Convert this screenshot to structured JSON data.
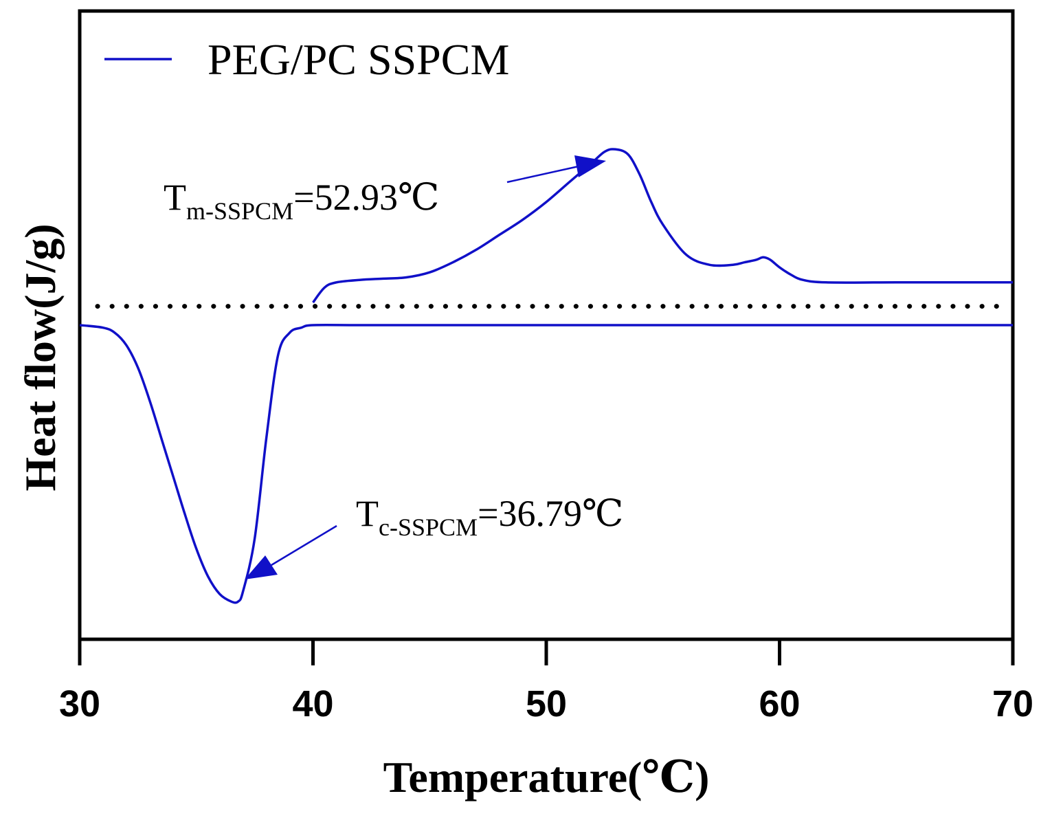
{
  "chart_data": {
    "type": "line",
    "title": "",
    "xlabel": "Temperature(℃)",
    "ylabel": "Heat flow(J/g)",
    "xlim": [
      30,
      70
    ],
    "xticks": [
      "30",
      "40",
      "50",
      "60",
      "70"
    ],
    "ylim": [
      -1.25,
      1.25
    ],
    "yticks_shown": false,
    "grid": false,
    "legend": {
      "position": "top-left",
      "entries": [
        {
          "label": "PEG/PC SSPCM",
          "color": "#1010c8"
        }
      ]
    },
    "reference_line": {
      "style": "dotted",
      "color": "#000000",
      "y": 0.075
    },
    "series": [
      {
        "name": "PEG/PC SSPCM (cooling)",
        "color": "#1010c8",
        "x": [
          30,
          31,
          31.5,
          32,
          32.5,
          33,
          33.5,
          34,
          34.5,
          35,
          35.5,
          36,
          36.5,
          36.79,
          37,
          37.5,
          38,
          38.5,
          39,
          39.5,
          40,
          42,
          45,
          50,
          55,
          60,
          65,
          70
        ],
        "y": [
          0.0,
          -0.01,
          -0.03,
          -0.08,
          -0.17,
          -0.3,
          -0.45,
          -0.6,
          -0.75,
          -0.89,
          -1.0,
          -1.07,
          -1.1,
          -1.1,
          -1.06,
          -0.85,
          -0.45,
          -0.12,
          -0.03,
          -0.01,
          0.0,
          0.0,
          0.0,
          0.0,
          0.0,
          0.0,
          0.0,
          0.0
        ]
      },
      {
        "name": "PEG/PC SSPCM (heating)",
        "color": "#1010c8",
        "x": [
          40,
          40.5,
          41,
          42,
          43,
          44,
          45,
          46,
          47,
          48,
          49,
          50,
          51,
          52,
          52.5,
          52.93,
          53.5,
          54,
          54.5,
          55,
          56,
          57,
          58,
          58.5,
          59,
          59.3,
          59.6,
          60,
          60.5,
          61,
          62,
          65,
          70
        ],
        "y": [
          0.09,
          0.15,
          0.17,
          0.18,
          0.185,
          0.19,
          0.21,
          0.25,
          0.3,
          0.36,
          0.42,
          0.49,
          0.57,
          0.65,
          0.69,
          0.7,
          0.68,
          0.6,
          0.49,
          0.4,
          0.28,
          0.24,
          0.24,
          0.25,
          0.26,
          0.27,
          0.26,
          0.23,
          0.2,
          0.18,
          0.17,
          0.17,
          0.17
        ]
      }
    ],
    "annotations": [
      {
        "id": "melting",
        "label_main": "T",
        "label_sub": "m-SSPCM",
        "label_value": "=52.93℃",
        "target_x": 52.93,
        "target_y": 0.7
      },
      {
        "id": "crystallization",
        "label_main": "T",
        "label_sub": "c-SSPCM",
        "label_value": "=36.79℃",
        "target_x": 36.79,
        "target_y": -1.1
      }
    ]
  }
}
